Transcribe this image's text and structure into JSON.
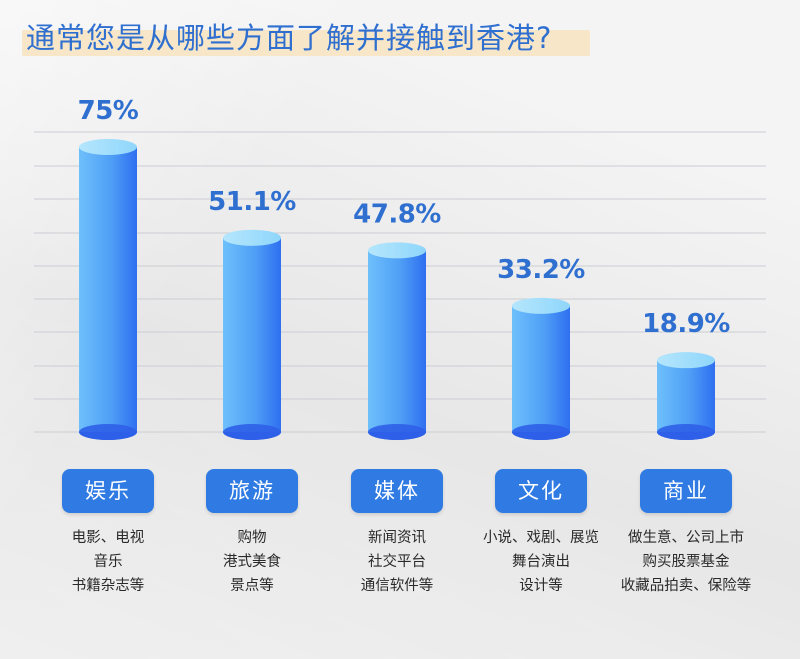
{
  "title": "通常您是从哪些方面了解并接触到香港?",
  "colors": {
    "title": "#2f6fd0",
    "title_highlight": "#f7e7c8",
    "bar_top": "#8fd6fb",
    "bar_body_light": "#6ec0fb",
    "bar_body_dark": "#2f6ff0",
    "bar_bottom": "#2f5fe8",
    "value_label": "#2f6fd0",
    "label_box": "#2f7be3"
  },
  "chart_data": {
    "type": "bar",
    "categories": [
      "娱乐",
      "旅游",
      "媒体",
      "文化",
      "商业"
    ],
    "values": [
      75,
      51.1,
      47.8,
      33.2,
      18.9
    ],
    "value_labels": [
      "75%",
      "51.1%",
      "47.8%",
      "33.2%",
      "18.9%"
    ],
    "ylim": [
      0,
      80
    ],
    "grid": true,
    "descriptions": [
      [
        "电影、电视",
        "音乐",
        "书籍杂志等"
      ],
      [
        "购物",
        "港式美食",
        "景点等"
      ],
      [
        "新闻资讯",
        "社交平台",
        "通信软件等"
      ],
      [
        "小说、戏剧、展览",
        "舞台演出",
        "设计等"
      ],
      [
        "做生意、公司上市",
        "购买股票基金",
        "收藏品拍卖、保险等"
      ]
    ]
  }
}
